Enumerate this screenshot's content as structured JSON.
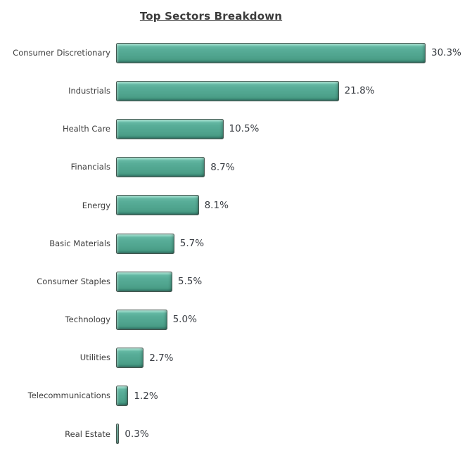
{
  "title": "Top Sectors Breakdown",
  "colors": {
    "background": "#FFFFFF",
    "title_text": "#3C3C3C",
    "label_text": "#3D3D3D",
    "value_text": "#3A3E44",
    "bar_body": "#52A791",
    "bar_highlight": "#9FDCCB",
    "bar_shadow": "#2E7263",
    "bar_border": "#44564F"
  },
  "chart_data": {
    "type": "bar",
    "orientation": "horizontal",
    "title": "Top Sectors Breakdown",
    "categories": [
      "Consumer Discretionary",
      "Industrials",
      "Health Care",
      "Financials",
      "Energy",
      "Basic Materials",
      "Consumer Staples",
      "Technology",
      "Utilities",
      "Telecommunications",
      "Real Estate"
    ],
    "values": [
      30.3,
      21.8,
      10.5,
      8.7,
      8.1,
      5.7,
      5.5,
      5.0,
      2.7,
      1.2,
      0.3
    ],
    "value_labels": [
      "30.3%",
      "21.8%",
      "10.5%",
      "8.7%",
      "8.1%",
      "5.7%",
      "5.5%",
      "5.0%",
      "2.7%",
      "1.2%",
      "0.3%"
    ],
    "unit": "%",
    "xlim": [
      0,
      30.3
    ],
    "sort": "descending",
    "grid": false,
    "legend": false,
    "data_labels_position": "outside-end",
    "bar_color": "#52A791"
  }
}
